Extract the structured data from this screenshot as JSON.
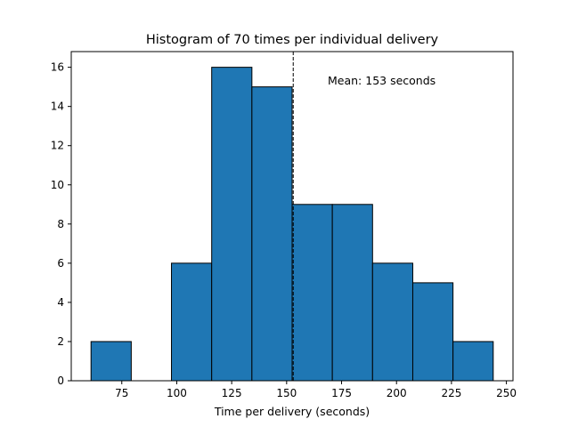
{
  "chart_data": {
    "type": "bar",
    "title": "Histogram of 70 times per individual delivery",
    "xlabel": "Time per delivery (seconds)",
    "ylabel": "",
    "bin_edges": [
      61,
      79.3,
      97.6,
      115.9,
      134.2,
      152.5,
      170.8,
      189.1,
      207.4,
      225.7,
      244
    ],
    "values": [
      2,
      0,
      6,
      16,
      15,
      9,
      9,
      6,
      5,
      2
    ],
    "xlim": [
      52,
      253
    ],
    "ylim": [
      0,
      16.8
    ],
    "xticks": [
      75,
      100,
      125,
      150,
      175,
      200,
      225,
      250
    ],
    "yticks": [
      0,
      2,
      4,
      6,
      8,
      10,
      12,
      14,
      16
    ],
    "mean": 153,
    "annotation": "Mean: 153 seconds",
    "bar_color": "#1f77b4",
    "edge_color": "#000000",
    "grid": false
  }
}
